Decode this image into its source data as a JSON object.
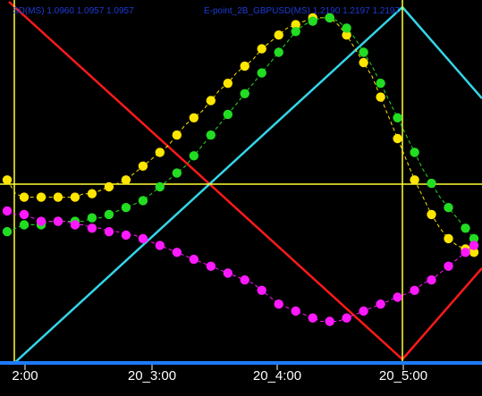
{
  "header": {
    "series_a": "SD(MS) 1.0960 1.0957 1.0957",
    "series_b": "E-point_2B_GBPUSD(MS) 1.2190 1.2197 1.2197"
  },
  "colors": {
    "background": "#000000",
    "red_line": "#ff1a1a",
    "cyan_line": "#33d6e8",
    "yellow": "#ffe600",
    "green": "#22dd22",
    "magenta": "#ff19ff",
    "marker_line": "#ffff33",
    "axis": "#1e7bff"
  },
  "chart_data": {
    "type": "line",
    "x_ticks": [
      "2:00",
      "20_3:00",
      "20_4:00",
      "20_5:00"
    ],
    "series": [
      {
        "color": "yellow",
        "style": "dots",
        "values": [
          0.52,
          0.48,
          0.47,
          0.47,
          0.47,
          0.47,
          0.47,
          0.47,
          0.47,
          0.48,
          0.48,
          0.49,
          0.5,
          0.51,
          0.52,
          0.54,
          0.56,
          0.58,
          0.6,
          0.62,
          0.65,
          0.68,
          0.7,
          0.72,
          0.75,
          0.78,
          0.8,
          0.83,
          0.85,
          0.87,
          0.9,
          0.92,
          0.94,
          0.96,
          0.97,
          0.98,
          0.99,
          0.99,
          0.99,
          0.97,
          0.94,
          0.9,
          0.86,
          0.82,
          0.76,
          0.7,
          0.64,
          0.58,
          0.52,
          0.47,
          0.42,
          0.38,
          0.35,
          0.33,
          0.32,
          0.31
        ]
      },
      {
        "color": "green",
        "style": "dots",
        "values": [
          0.37,
          0.38,
          0.39,
          0.39,
          0.39,
          0.4,
          0.4,
          0.4,
          0.4,
          0.4,
          0.41,
          0.41,
          0.42,
          0.43,
          0.44,
          0.45,
          0.46,
          0.48,
          0.5,
          0.52,
          0.54,
          0.56,
          0.59,
          0.62,
          0.65,
          0.68,
          0.71,
          0.74,
          0.77,
          0.8,
          0.83,
          0.86,
          0.89,
          0.92,
          0.95,
          0.97,
          0.98,
          0.99,
          0.99,
          0.98,
          0.96,
          0.93,
          0.89,
          0.85,
          0.8,
          0.75,
          0.7,
          0.65,
          0.6,
          0.55,
          0.51,
          0.47,
          0.44,
          0.41,
          0.38,
          0.35
        ]
      },
      {
        "color": "magenta",
        "style": "dots",
        "values": [
          0.43,
          0.42,
          0.42,
          0.41,
          0.4,
          0.4,
          0.4,
          0.4,
          0.39,
          0.39,
          0.38,
          0.38,
          0.37,
          0.37,
          0.36,
          0.36,
          0.35,
          0.34,
          0.33,
          0.32,
          0.31,
          0.3,
          0.29,
          0.28,
          0.27,
          0.26,
          0.25,
          0.24,
          0.23,
          0.22,
          0.2,
          0.18,
          0.16,
          0.15,
          0.14,
          0.13,
          0.12,
          0.11,
          0.11,
          0.11,
          0.12,
          0.13,
          0.14,
          0.15,
          0.16,
          0.17,
          0.18,
          0.19,
          0.2,
          0.22,
          0.23,
          0.25,
          0.27,
          0.29,
          0.31,
          0.33
        ]
      }
    ]
  }
}
